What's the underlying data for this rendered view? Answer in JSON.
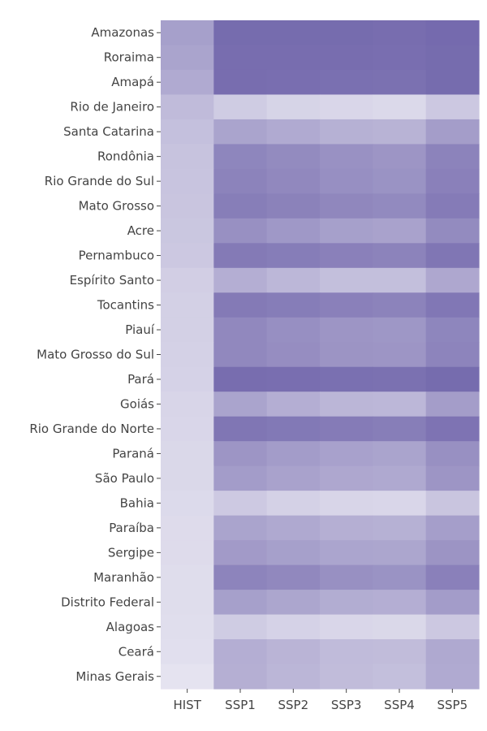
{
  "chart_data": {
    "type": "heatmap",
    "title": "",
    "xlabel": "",
    "ylabel": "",
    "colorscale": {
      "low": "#ecebf4",
      "high": "#7469ad"
    },
    "legend": "none",
    "grid": false,
    "x": [
      "HIST",
      "SSP1",
      "SSP2",
      "SSP3",
      "SSP4",
      "SSP5"
    ],
    "y": [
      "Amazonas",
      "Roraima",
      "Amapá",
      "Rio de Janeiro",
      "Santa Catarina",
      "Rondônia",
      "Rio Grande do Sul",
      "Mato Grosso",
      "Acre",
      "Pernambuco",
      "Espírito Santo",
      "Tocantins",
      "Piauí",
      "Mato Grosso do Sul",
      "Pará",
      "Goiás",
      "Rio Grande do Norte",
      "Paraná",
      "São Paulo",
      "Bahia",
      "Paraíba",
      "Sergipe",
      "Maranhão",
      "Distrito Federal",
      "Alagoas",
      "Ceará",
      "Minas Gerais"
    ],
    "z": [
      [
        0.58,
        0.98,
        0.98,
        0.98,
        0.97,
        0.99
      ],
      [
        0.55,
        0.97,
        0.97,
        0.97,
        0.96,
        0.98
      ],
      [
        0.5,
        0.97,
        0.96,
        0.95,
        0.94,
        0.98
      ],
      [
        0.37,
        0.24,
        0.18,
        0.16,
        0.14,
        0.27
      ],
      [
        0.33,
        0.55,
        0.5,
        0.45,
        0.43,
        0.6
      ],
      [
        0.31,
        0.78,
        0.74,
        0.69,
        0.66,
        0.8
      ],
      [
        0.3,
        0.8,
        0.76,
        0.71,
        0.68,
        0.82
      ],
      [
        0.29,
        0.84,
        0.81,
        0.77,
        0.75,
        0.86
      ],
      [
        0.28,
        0.7,
        0.64,
        0.58,
        0.56,
        0.74
      ],
      [
        0.27,
        0.87,
        0.85,
        0.82,
        0.8,
        0.9
      ],
      [
        0.22,
        0.47,
        0.4,
        0.34,
        0.34,
        0.52
      ],
      [
        0.21,
        0.87,
        0.85,
        0.82,
        0.8,
        0.89
      ],
      [
        0.21,
        0.76,
        0.71,
        0.66,
        0.65,
        0.78
      ],
      [
        0.2,
        0.76,
        0.72,
        0.67,
        0.66,
        0.79
      ],
      [
        0.19,
        0.97,
        0.96,
        0.95,
        0.94,
        0.98
      ],
      [
        0.17,
        0.55,
        0.47,
        0.41,
        0.4,
        0.6
      ],
      [
        0.16,
        0.9,
        0.88,
        0.86,
        0.84,
        0.92
      ],
      [
        0.15,
        0.66,
        0.61,
        0.57,
        0.55,
        0.7
      ],
      [
        0.15,
        0.61,
        0.56,
        0.52,
        0.51,
        0.66
      ],
      [
        0.13,
        0.26,
        0.2,
        0.17,
        0.16,
        0.29
      ],
      [
        0.12,
        0.55,
        0.51,
        0.46,
        0.45,
        0.59
      ],
      [
        0.12,
        0.62,
        0.58,
        0.54,
        0.53,
        0.67
      ],
      [
        0.11,
        0.79,
        0.76,
        0.7,
        0.68,
        0.82
      ],
      [
        0.11,
        0.58,
        0.53,
        0.48,
        0.47,
        0.61
      ],
      [
        0.1,
        0.24,
        0.19,
        0.16,
        0.15,
        0.27
      ],
      [
        0.09,
        0.47,
        0.42,
        0.37,
        0.36,
        0.51
      ],
      [
        0.06,
        0.46,
        0.41,
        0.36,
        0.34,
        0.5
      ]
    ]
  }
}
